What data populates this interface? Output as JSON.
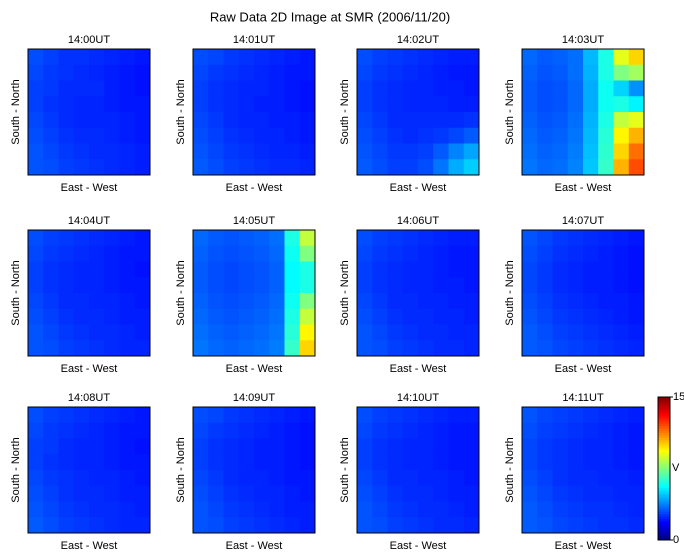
{
  "chart_data": {
    "type": "heatmap",
    "title": "Raw Data 2D Image at SMR (2006/11/20)",
    "colormap": "jet",
    "colorbar": {
      "lim": [
        0,
        15
      ],
      "ticks": [
        0,
        15
      ],
      "label": "V"
    },
    "panels": [
      {
        "title": "14:00UT",
        "xlabel": "East - West",
        "ylabel": "South - North",
        "values": [
          [
            3,
            2.8,
            2.6,
            2.6,
            2.5,
            2.4,
            2.3,
            2.2
          ],
          [
            2.9,
            2.7,
            2.6,
            2.5,
            2.4,
            2.3,
            2.2,
            2.1
          ],
          [
            2.8,
            2.7,
            2.5,
            2.5,
            2.5,
            2.3,
            2.2,
            2.1
          ],
          [
            2.8,
            2.6,
            2.5,
            2.4,
            2.4,
            2.3,
            2.2,
            2.2
          ],
          [
            2.9,
            2.7,
            2.5,
            2.4,
            2.4,
            2.4,
            2.3,
            2.2
          ],
          [
            3,
            2.8,
            2.6,
            2.5,
            2.5,
            2.4,
            2.3,
            2.2
          ],
          [
            3.1,
            2.9,
            2.7,
            2.6,
            2.5,
            2.5,
            2.4,
            2.3
          ],
          [
            3.1,
            3,
            2.8,
            2.7,
            2.6,
            2.5,
            2.4,
            2.3
          ]
        ]
      },
      {
        "title": "14:01UT",
        "xlabel": "East - West",
        "ylabel": "South - North",
        "values": [
          [
            3,
            2.9,
            2.7,
            2.6,
            2.5,
            2.4,
            2.3,
            2.2
          ],
          [
            2.9,
            2.7,
            2.6,
            2.5,
            2.4,
            2.3,
            2.2,
            2.2
          ],
          [
            2.8,
            2.6,
            2.5,
            2.4,
            2.4,
            2.3,
            2.2,
            2.1
          ],
          [
            2.8,
            2.6,
            2.5,
            2.4,
            2.3,
            2.3,
            2.2,
            2.1
          ],
          [
            2.9,
            2.7,
            2.5,
            2.4,
            2.4,
            2.3,
            2.3,
            2.2
          ],
          [
            3,
            2.8,
            2.6,
            2.5,
            2.4,
            2.4,
            2.3,
            2.2
          ],
          [
            3.1,
            2.9,
            2.7,
            2.6,
            2.5,
            2.4,
            2.4,
            2.3
          ],
          [
            3.2,
            3,
            2.8,
            2.7,
            2.6,
            2.5,
            2.5,
            2.4
          ]
        ]
      },
      {
        "title": "14:02UT",
        "xlabel": "East - West",
        "ylabel": "South - North",
        "values": [
          [
            3,
            2.8,
            2.7,
            2.6,
            2.5,
            2.4,
            2.3,
            2.3
          ],
          [
            2.9,
            2.7,
            2.6,
            2.5,
            2.4,
            2.3,
            2.2,
            2.2
          ],
          [
            2.8,
            2.6,
            2.5,
            2.4,
            2.4,
            2.3,
            2.3,
            2.2
          ],
          [
            2.8,
            2.6,
            2.5,
            2.4,
            2.4,
            2.4,
            2.3,
            2.3
          ],
          [
            2.9,
            2.7,
            2.5,
            2.5,
            2.5,
            2.5,
            2.5,
            2.6
          ],
          [
            3,
            2.8,
            2.6,
            2.5,
            2.6,
            2.7,
            2.9,
            3.2
          ],
          [
            3.1,
            2.9,
            2.7,
            2.7,
            2.8,
            3.2,
            3.8,
            4.3
          ],
          [
            3.2,
            3,
            2.8,
            2.8,
            3,
            3.6,
            4.4,
            4.9
          ]
        ]
      },
      {
        "title": "14:03UT",
        "xlabel": "East - West",
        "ylabel": "South - North",
        "values": [
          [
            3.4,
            3.2,
            3.3,
            3.5,
            4.6,
            6,
            9,
            10
          ],
          [
            3.3,
            3.1,
            3.2,
            3.5,
            4.5,
            6,
            7.5,
            8
          ],
          [
            3.2,
            3,
            3.1,
            3.4,
            4.4,
            5.8,
            5,
            4
          ],
          [
            3.2,
            3,
            3.1,
            3.4,
            4.4,
            5.8,
            6,
            5.5
          ],
          [
            3.3,
            3.1,
            3.2,
            3.5,
            4.5,
            6,
            8.5,
            9
          ],
          [
            3.4,
            3.2,
            3.3,
            3.6,
            4.6,
            6.2,
            9.5,
            10.5
          ],
          [
            3.5,
            3.3,
            3.4,
            3.7,
            4.7,
            6.3,
            10,
            11.5
          ],
          [
            3.6,
            3.4,
            3.5,
            3.8,
            4.8,
            6.4,
            10.5,
            12
          ]
        ]
      },
      {
        "title": "14:04UT",
        "xlabel": "East - West",
        "ylabel": "South - North",
        "values": [
          [
            3,
            2.8,
            2.7,
            2.6,
            2.5,
            2.4,
            2.3,
            2.2
          ],
          [
            2.9,
            2.7,
            2.6,
            2.5,
            2.4,
            2.3,
            2.2,
            2.2
          ],
          [
            2.8,
            2.6,
            2.5,
            2.4,
            2.4,
            2.3,
            2.2,
            2.1
          ],
          [
            2.8,
            2.6,
            2.5,
            2.4,
            2.4,
            2.3,
            2.2,
            2.2
          ],
          [
            2.9,
            2.7,
            2.5,
            2.5,
            2.4,
            2.4,
            2.3,
            2.2
          ],
          [
            3,
            2.8,
            2.6,
            2.5,
            2.5,
            2.4,
            2.3,
            2.3
          ],
          [
            3.1,
            2.9,
            2.7,
            2.6,
            2.5,
            2.5,
            2.4,
            2.3
          ],
          [
            3.1,
            3,
            2.8,
            2.7,
            2.6,
            2.5,
            2.4,
            2.4
          ]
        ]
      },
      {
        "title": "14:05UT",
        "xlabel": "East - West",
        "ylabel": "South - North",
        "values": [
          [
            3.4,
            3.2,
            3.1,
            3.2,
            3.3,
            3.5,
            6,
            8.5
          ],
          [
            3.3,
            3.1,
            3,
            3.1,
            3.2,
            3.4,
            5.8,
            7.5
          ],
          [
            3.2,
            3,
            2.9,
            3,
            3.1,
            3.3,
            5.6,
            6
          ],
          [
            3.2,
            3,
            2.9,
            3,
            3.1,
            3.3,
            5.6,
            6
          ],
          [
            3.3,
            3.1,
            3,
            3.1,
            3.2,
            3.4,
            5.8,
            7.5
          ],
          [
            3.4,
            3.2,
            3.1,
            3.2,
            3.3,
            3.5,
            6,
            8.5
          ],
          [
            3.5,
            3.3,
            3.2,
            3.3,
            3.4,
            3.6,
            6.2,
            9.5
          ],
          [
            3.6,
            3.4,
            3.3,
            3.4,
            3.5,
            3.7,
            6.4,
            10
          ]
        ]
      },
      {
        "title": "14:06UT",
        "xlabel": "East - West",
        "ylabel": "South - North",
        "values": [
          [
            3,
            2.8,
            2.7,
            2.6,
            2.5,
            2.4,
            2.3,
            2.3
          ],
          [
            2.9,
            2.7,
            2.6,
            2.5,
            2.4,
            2.3,
            2.2,
            2.2
          ],
          [
            2.8,
            2.6,
            2.5,
            2.4,
            2.4,
            2.3,
            2.2,
            2.2
          ],
          [
            2.8,
            2.6,
            2.5,
            2.4,
            2.4,
            2.3,
            2.3,
            2.2
          ],
          [
            2.9,
            2.7,
            2.5,
            2.5,
            2.4,
            2.4,
            2.3,
            2.3
          ],
          [
            3,
            2.8,
            2.6,
            2.5,
            2.5,
            2.4,
            2.4,
            2.3
          ],
          [
            3.1,
            2.9,
            2.7,
            2.6,
            2.5,
            2.5,
            2.4,
            2.4
          ],
          [
            3.1,
            3,
            2.8,
            2.7,
            2.6,
            2.5,
            2.5,
            2.4
          ]
        ]
      },
      {
        "title": "14:07UT",
        "xlabel": "East - West",
        "ylabel": "South - North",
        "values": [
          [
            3.1,
            2.9,
            2.7,
            2.6,
            2.5,
            2.4,
            2.3,
            2.2
          ],
          [
            3,
            2.8,
            2.6,
            2.5,
            2.4,
            2.3,
            2.2,
            2.1
          ],
          [
            2.9,
            2.7,
            2.5,
            2.4,
            2.3,
            2.3,
            2.2,
            2.1
          ],
          [
            2.9,
            2.7,
            2.5,
            2.4,
            2.3,
            2.3,
            2.2,
            2.1
          ],
          [
            3,
            2.8,
            2.6,
            2.5,
            2.4,
            2.3,
            2.3,
            2.2
          ],
          [
            3.1,
            2.9,
            2.7,
            2.6,
            2.5,
            2.4,
            2.3,
            2.2
          ],
          [
            3.2,
            3,
            2.8,
            2.7,
            2.6,
            2.5,
            2.4,
            2.3
          ],
          [
            3.2,
            3.1,
            2.9,
            2.8,
            2.7,
            2.6,
            2.5,
            2.4
          ]
        ]
      },
      {
        "title": "14:08UT",
        "xlabel": "East - West",
        "ylabel": "South - North",
        "values": [
          [
            3,
            2.8,
            2.7,
            2.6,
            2.5,
            2.4,
            2.3,
            2.2
          ],
          [
            2.9,
            2.7,
            2.6,
            2.5,
            2.4,
            2.3,
            2.2,
            2.2
          ],
          [
            2.8,
            2.7,
            2.5,
            2.4,
            2.4,
            2.3,
            2.2,
            2.1
          ],
          [
            2.8,
            2.6,
            2.5,
            2.4,
            2.4,
            2.3,
            2.2,
            2.2
          ],
          [
            2.9,
            2.7,
            2.6,
            2.5,
            2.4,
            2.4,
            2.3,
            2.2
          ],
          [
            3,
            2.8,
            2.6,
            2.5,
            2.5,
            2.4,
            2.3,
            2.3
          ],
          [
            3.1,
            2.9,
            2.7,
            2.6,
            2.5,
            2.5,
            2.4,
            2.3
          ],
          [
            3.2,
            3,
            2.8,
            2.7,
            2.6,
            2.5,
            2.4,
            2.4
          ]
        ]
      },
      {
        "title": "14:09UT",
        "xlabel": "East - West",
        "ylabel": "South - North",
        "values": [
          [
            3,
            2.9,
            2.7,
            2.6,
            2.5,
            2.4,
            2.3,
            2.2
          ],
          [
            2.9,
            2.7,
            2.6,
            2.5,
            2.4,
            2.3,
            2.2,
            2.1
          ],
          [
            2.8,
            2.6,
            2.5,
            2.4,
            2.3,
            2.3,
            2.2,
            2.1
          ],
          [
            2.8,
            2.6,
            2.5,
            2.4,
            2.3,
            2.3,
            2.2,
            2.1
          ],
          [
            2.9,
            2.7,
            2.5,
            2.4,
            2.4,
            2.3,
            2.2,
            2.2
          ],
          [
            3,
            2.8,
            2.6,
            2.5,
            2.4,
            2.4,
            2.3,
            2.2
          ],
          [
            3.1,
            2.9,
            2.7,
            2.6,
            2.5,
            2.4,
            2.3,
            2.3
          ],
          [
            3.1,
            3,
            2.8,
            2.7,
            2.6,
            2.5,
            2.4,
            2.3
          ]
        ]
      },
      {
        "title": "14:10UT",
        "xlabel": "East - West",
        "ylabel": "South - North",
        "values": [
          [
            3,
            2.8,
            2.7,
            2.6,
            2.5,
            2.4,
            2.3,
            2.3
          ],
          [
            2.9,
            2.7,
            2.6,
            2.5,
            2.4,
            2.3,
            2.2,
            2.2
          ],
          [
            2.8,
            2.6,
            2.5,
            2.4,
            2.4,
            2.3,
            2.2,
            2.2
          ],
          [
            2.8,
            2.6,
            2.5,
            2.4,
            2.4,
            2.3,
            2.2,
            2.2
          ],
          [
            2.9,
            2.7,
            2.5,
            2.5,
            2.4,
            2.4,
            2.3,
            2.2
          ],
          [
            3,
            2.8,
            2.6,
            2.5,
            2.5,
            2.4,
            2.3,
            2.3
          ],
          [
            3.1,
            2.9,
            2.7,
            2.6,
            2.5,
            2.5,
            2.4,
            2.3
          ],
          [
            3.1,
            3,
            2.8,
            2.7,
            2.6,
            2.5,
            2.5,
            2.4
          ]
        ]
      },
      {
        "title": "14:11UT",
        "xlabel": "East - West",
        "ylabel": "South - North",
        "values": [
          [
            3.1,
            2.9,
            2.8,
            2.7,
            2.6,
            2.5,
            2.4,
            2.3
          ],
          [
            3,
            2.8,
            2.7,
            2.6,
            2.5,
            2.4,
            2.3,
            2.2
          ],
          [
            2.9,
            2.7,
            2.6,
            2.5,
            2.4,
            2.4,
            2.3,
            2.2
          ],
          [
            2.9,
            2.7,
            2.6,
            2.5,
            2.4,
            2.4,
            2.3,
            2.2
          ],
          [
            3,
            2.8,
            2.6,
            2.5,
            2.5,
            2.4,
            2.4,
            2.3
          ],
          [
            3.1,
            2.9,
            2.7,
            2.6,
            2.5,
            2.5,
            2.4,
            2.4
          ],
          [
            3.2,
            3,
            2.8,
            2.7,
            2.6,
            2.6,
            2.5,
            2.4
          ],
          [
            3.2,
            3.1,
            2.9,
            2.8,
            2.7,
            2.6,
            2.6,
            2.5
          ]
        ]
      }
    ]
  }
}
